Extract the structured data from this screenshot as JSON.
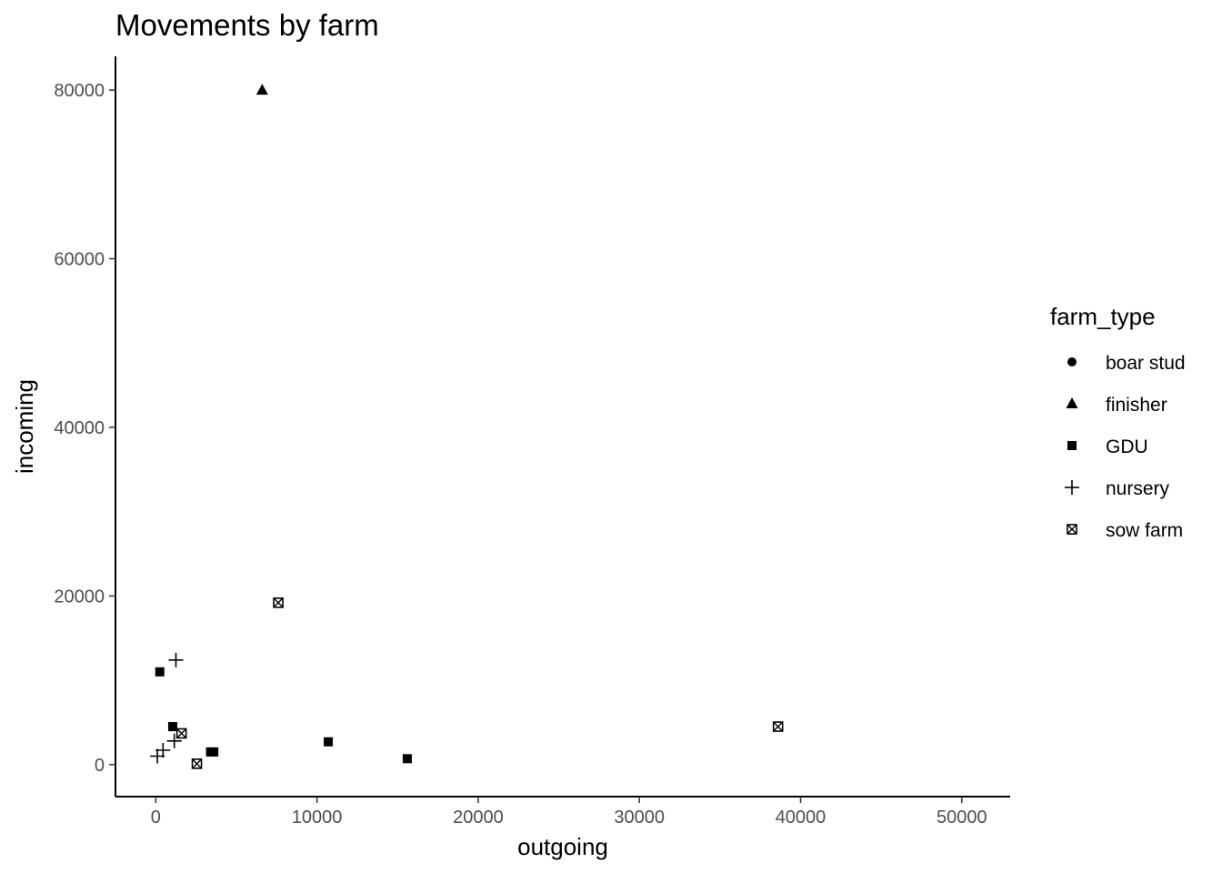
{
  "chart_data": {
    "type": "scatter",
    "title": "Movements by farm",
    "xlabel": "outgoing",
    "ylabel": "incoming",
    "xlim": [
      -2500,
      53000
    ],
    "ylim": [
      -3800,
      84000
    ],
    "x_ticks": [
      0,
      10000,
      20000,
      30000,
      40000,
      50000
    ],
    "y_ticks": [
      0,
      20000,
      40000,
      60000,
      80000
    ],
    "grid": false,
    "legend": {
      "title": "farm_type",
      "placement": "right",
      "entries": [
        {
          "label": "boar stud",
          "shape": "circle"
        },
        {
          "label": "finisher",
          "shape": "triangle"
        },
        {
          "label": "GDU",
          "shape": "square"
        },
        {
          "label": "nursery",
          "shape": "plus"
        },
        {
          "label": "sow farm",
          "shape": "square-cross"
        }
      ]
    },
    "series": [
      {
        "name": "boar stud",
        "shape": "circle",
        "points": []
      },
      {
        "name": "finisher",
        "shape": "triangle",
        "points": [
          {
            "x": 6600,
            "y": 80000
          }
        ]
      },
      {
        "name": "GDU",
        "shape": "square",
        "points": [
          {
            "x": 250,
            "y": 11000
          },
          {
            "x": 1050,
            "y": 4500
          },
          {
            "x": 3400,
            "y": 1500
          },
          {
            "x": 3600,
            "y": 1500
          },
          {
            "x": 10700,
            "y": 2700
          },
          {
            "x": 15600,
            "y": 700
          }
        ]
      },
      {
        "name": "nursery",
        "shape": "plus",
        "points": [
          {
            "x": 1250,
            "y": 12400
          },
          {
            "x": 100,
            "y": 1000
          },
          {
            "x": 450,
            "y": 1700
          },
          {
            "x": 1150,
            "y": 2800
          }
        ]
      },
      {
        "name": "sow farm",
        "shape": "square-cross",
        "points": [
          {
            "x": 7600,
            "y": 19200
          },
          {
            "x": 1600,
            "y": 3700
          },
          {
            "x": 2550,
            "y": 100
          },
          {
            "x": 38600,
            "y": 4500
          }
        ]
      }
    ]
  }
}
